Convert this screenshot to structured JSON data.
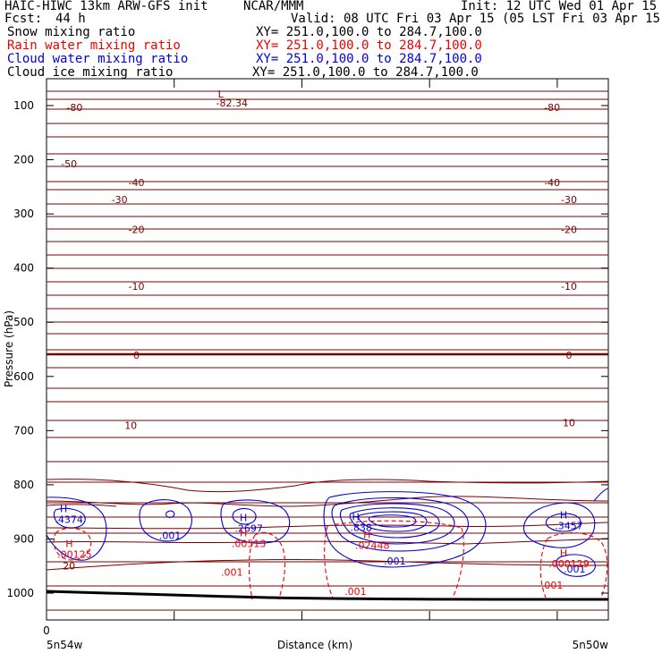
{
  "header": {
    "model": "HAIC-HIWC 13km ARW-GFS init",
    "center": "NCAR/MMM",
    "init": "Init: 12 UTC Wed 01 Apr 15",
    "fcst_label": "Fcst:",
    "fcst_value": "44 h",
    "valid": "Valid: 08 UTC Fri 03 Apr 15 (05 LST Fri 03 Apr 15)",
    "fields": [
      {
        "name": "Snow mixing ratio",
        "xy": "XY= 251.0,100.0 to 284.7,100.0",
        "color": "#000000"
      },
      {
        "name": "Rain water mixing ratio",
        "xy": "XY= 251.0,100.0 to 284.7,100.0",
        "color": "#ee0000"
      },
      {
        "name": "Cloud water mixing ratio",
        "xy": "XY= 251.0,100.0 to 284.7,100.0",
        "color": "#0000dd"
      },
      {
        "name": "Cloud ice mixing ratio",
        "xy": "XY= 251.0,100.0 to 284.7,100.0",
        "color": "#000000"
      }
    ]
  },
  "chart_data": {
    "type": "contour",
    "xlabel": "Distance (km)",
    "ylabel": "Pressure (hPa)",
    "x_left_label": "5n54w",
    "x_right_label": "5n50w",
    "x_tick_zero": "0",
    "ylim": [
      1050,
      70
    ],
    "yticks": [
      100,
      200,
      300,
      400,
      500,
      600,
      700,
      800,
      900,
      1000
    ],
    "colors": {
      "temperature": "#7a0000",
      "rain": "#ee0000",
      "cloud": "#0000dd",
      "terrain": "#000000"
    },
    "temperature_labels": [
      {
        "text": "-80",
        "x": 0.05,
        "p": 110
      },
      {
        "text": "-80",
        "x": 0.9,
        "p": 110
      },
      {
        "text": "-82.34",
        "x": 0.33,
        "p": 102
      },
      {
        "text": "L",
        "x": 0.31,
        "p": 85
      },
      {
        "text": "-50",
        "x": 0.04,
        "p": 214
      },
      {
        "text": "-40",
        "x": 0.16,
        "p": 249
      },
      {
        "text": "-40",
        "x": 0.9,
        "p": 249
      },
      {
        "text": "-30",
        "x": 0.13,
        "p": 280
      },
      {
        "text": "-30",
        "x": 0.93,
        "p": 280
      },
      {
        "text": "-20",
        "x": 0.16,
        "p": 335
      },
      {
        "text": "-20",
        "x": 0.93,
        "p": 335
      },
      {
        "text": "-10",
        "x": 0.16,
        "p": 440
      },
      {
        "text": "-10",
        "x": 0.93,
        "p": 440
      },
      {
        "text": "0",
        "x": 0.16,
        "p": 567
      },
      {
        "text": "0",
        "x": 0.93,
        "p": 567
      },
      {
        "text": "10",
        "x": 0.15,
        "p": 697
      },
      {
        "text": "10",
        "x": 0.93,
        "p": 692
      },
      {
        "text": "20",
        "x": 0.04,
        "p": 956
      }
    ],
    "maxima": [
      {
        "text": ".4374",
        "marker": "H",
        "series": "cloud",
        "x": 0.04,
        "p": 870
      },
      {
        "text": ".001",
        "marker": "",
        "series": "cloud",
        "x": 0.22,
        "p": 900
      },
      {
        "text": ".2697",
        "marker": "H",
        "series": "cloud",
        "x": 0.36,
        "p": 887
      },
      {
        "text": ".838",
        "marker": "H",
        "series": "cloud",
        "x": 0.56,
        "p": 885
      },
      {
        "text": ".001",
        "marker": "",
        "series": "cloud",
        "x": 0.62,
        "p": 947
      },
      {
        "text": ".3457",
        "marker": "H",
        "series": "cloud",
        "x": 0.93,
        "p": 882
      },
      {
        "text": ".001",
        "marker": "",
        "series": "cloud",
        "x": 0.94,
        "p": 962
      },
      {
        "text": ".00125",
        "marker": "H",
        "series": "rain",
        "x": 0.05,
        "p": 935
      },
      {
        "text": ".00513",
        "marker": "H",
        "series": "rain",
        "x": 0.36,
        "p": 915
      },
      {
        "text": ".001",
        "marker": "",
        "series": "rain",
        "x": 0.33,
        "p": 968
      },
      {
        "text": ".02448",
        "marker": "H",
        "series": "rain",
        "x": 0.58,
        "p": 918
      },
      {
        "text": ".001",
        "marker": "",
        "series": "rain",
        "x": 0.55,
        "p": 1003
      },
      {
        "text": ".000129",
        "marker": "H",
        "series": "rain",
        "x": 0.93,
        "p": 952
      },
      {
        "text": ".001",
        "marker": "",
        "series": "rain",
        "x": 0.9,
        "p": 992
      }
    ]
  }
}
